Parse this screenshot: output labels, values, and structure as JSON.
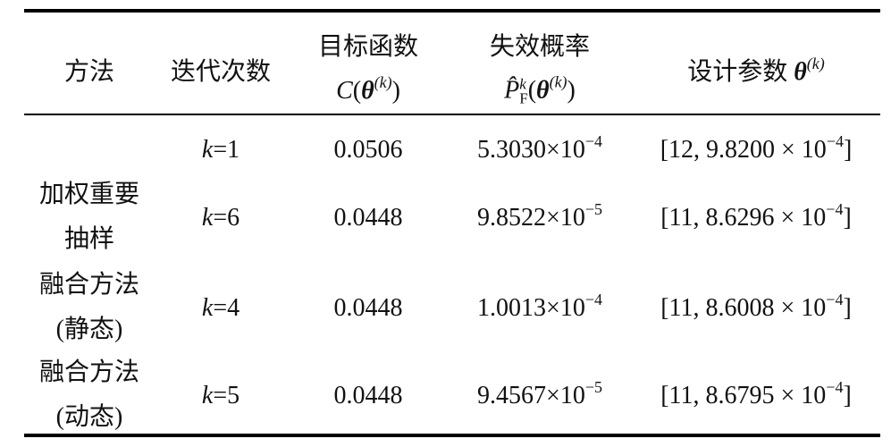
{
  "table": {
    "header": {
      "method": "方法",
      "iterations": "迭代次数",
      "objective": {
        "title": "目标函数",
        "formula": [
          "C",
          "(",
          "θ",
          "(k)",
          ")"
        ]
      },
      "failure": {
        "title": "失效概率",
        "formula": [
          "P̂",
          "F",
          "k",
          "(",
          "θ",
          "(k)",
          ")"
        ]
      },
      "design": {
        "title": "设计参数",
        "symbol": "θ",
        "sup": "(k)"
      }
    },
    "groups": [
      {
        "method": [
          "加权重要",
          "抽样"
        ],
        "rows": [
          {
            "k": [
              "k",
              "=1"
            ],
            "objective": "0.0506",
            "failure": [
              "5.3030×10",
              "−4"
            ],
            "design": [
              "[12, 9.8200 × 10",
              "−4",
              "]"
            ]
          },
          {
            "k": [
              "k",
              "=6"
            ],
            "objective": "0.0448",
            "failure": [
              "9.8522×10",
              "−5"
            ],
            "design": [
              "[11, 8.6296 × 10",
              "−4",
              "]"
            ]
          }
        ]
      },
      {
        "method": [
          "融合方法",
          "(静态)"
        ],
        "rows": [
          {
            "k": [
              "k",
              "=4"
            ],
            "objective": "0.0448",
            "failure": [
              "1.0013×10",
              "−4"
            ],
            "design": [
              "[11, 8.6008 × 10",
              "−4",
              "]"
            ]
          }
        ]
      },
      {
        "method": [
          "融合方法",
          "(动态)"
        ],
        "rows": [
          {
            "k": [
              "k",
              "=5"
            ],
            "objective": "0.0448",
            "failure": [
              "9.4567×10",
              "−5"
            ],
            "design": [
              "[11, 8.6795 × 10",
              "−4",
              "]"
            ]
          }
        ]
      }
    ]
  }
}
